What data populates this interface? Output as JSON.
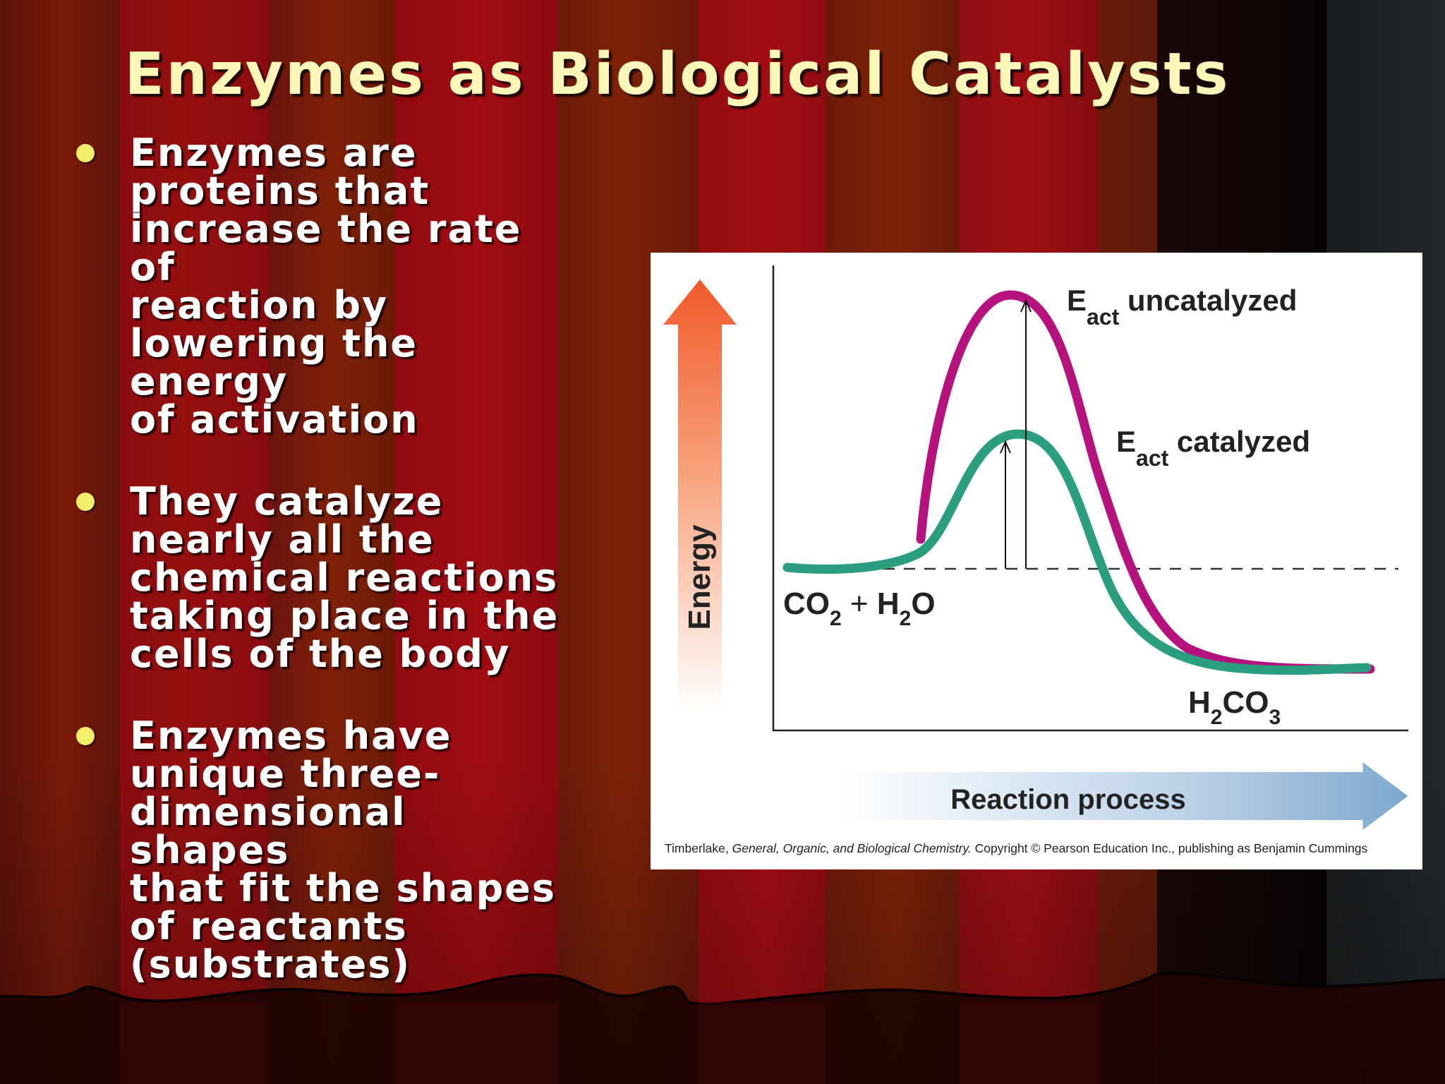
{
  "slide": {
    "title": "Enzymes as Biological Catalysts",
    "bullets": [
      {
        "lines": [
          "Enzymes are",
          "proteins that",
          "increase the rate of",
          "reaction by",
          "lowering the energy",
          "of activation"
        ]
      },
      {
        "lines": [
          "They catalyze",
          "nearly all the",
          "chemical reactions",
          "taking place in the",
          "cells of the body"
        ]
      },
      {
        "lines": [
          "Enzymes have",
          "unique three-",
          "dimensional shapes",
          "that fit the shapes",
          "of reactants",
          "(substrates)"
        ]
      }
    ]
  },
  "figure": {
    "y_axis_label": "Energy",
    "x_axis_label": "Reaction process",
    "uncatalyzed_label": {
      "main": "E",
      "sub": "act",
      "rest": " uncatalyzed"
    },
    "catalyzed_label": {
      "main": "E",
      "sub": "act",
      "rest": " catalyzed"
    },
    "reactants_label": {
      "a": "CO",
      "a_sub": "2",
      "plus": " + ",
      "b": "H",
      "b_sub": "2",
      "b_rest": "O"
    },
    "products_label": {
      "a": "H",
      "a_sub": "2",
      "b": "CO",
      "b_sub": "3"
    },
    "caption": {
      "prefix": "Timberlake, ",
      "book": "General, Organic, and Biological Chemistry.",
      "suffix": "  Copyright © Pearson Education Inc., publishing as Benjamin Cummings"
    },
    "colors": {
      "uncatalyzed": "#b5127e",
      "catalyzed": "#2a9e7e",
      "energy_arrow": "#f15a2a",
      "process_arrow": "#7fa8cf"
    }
  }
}
